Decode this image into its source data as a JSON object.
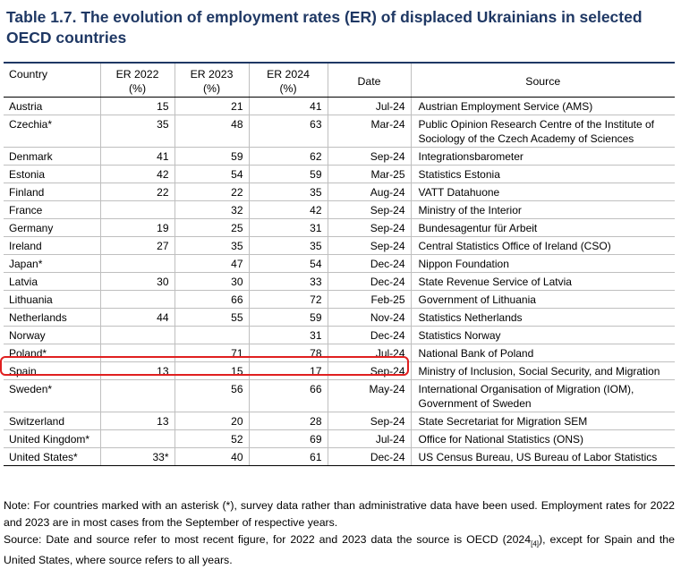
{
  "title": "Table 1.7. The evolution of employment rates (ER) of displaced Ukrainians in selected OECD countries",
  "headers": {
    "country": "Country",
    "er2022": [
      "ER 2022",
      "(%)"
    ],
    "er2023": [
      "ER 2023",
      "(%)"
    ],
    "er2024": [
      "ER 2024",
      "(%)"
    ],
    "date": "Date",
    "source": "Source"
  },
  "rows": [
    {
      "country": "Austria",
      "er2022": "15",
      "er2023": "21",
      "er2024": "41",
      "date": "Jul-24",
      "source": "Austrian Employment Service (AMS)"
    },
    {
      "country": "Czechia*",
      "er2022": "35",
      "er2023": "48",
      "er2024": "63",
      "date": "Mar-24",
      "source": "Public Opinion Research Centre of the Institute of Sociology of the Czech Academy of Sciences"
    },
    {
      "country": "Denmark",
      "er2022": "41",
      "er2023": "59",
      "er2024": "62",
      "date": "Sep-24",
      "source": "Integrationsbarometer"
    },
    {
      "country": "Estonia",
      "er2022": "42",
      "er2023": "54",
      "er2024": "59",
      "date": "Mar-25",
      "source": "Statistics Estonia"
    },
    {
      "country": "Finland",
      "er2022": "22",
      "er2023": "22",
      "er2024": "35",
      "date": "Aug-24",
      "source": "VATT Datahuone"
    },
    {
      "country": "France",
      "er2022": "",
      "er2023": "32",
      "er2024": "42",
      "date": "Sep-24",
      "source": "Ministry of the Interior"
    },
    {
      "country": "Germany",
      "er2022": "19",
      "er2023": "25",
      "er2024": "31",
      "date": "Sep-24",
      "source": "Bundesagentur für Arbeit"
    },
    {
      "country": "Ireland",
      "er2022": "27",
      "er2023": "35",
      "er2024": "35",
      "date": "Sep-24",
      "source": "Central Statistics Office of Ireland (CSO)"
    },
    {
      "country": "Japan*",
      "er2022": "",
      "er2023": "47",
      "er2024": "54",
      "date": "Dec-24",
      "source": "Nippon Foundation"
    },
    {
      "country": "Latvia",
      "er2022": "30",
      "er2023": "30",
      "er2024": "33",
      "date": "Dec-24",
      "source": "State Revenue Service of Latvia"
    },
    {
      "country": "Lithuania",
      "er2022": "",
      "er2023": "66",
      "er2024": "72",
      "date": "Feb-25",
      "source": "Government of Lithuania"
    },
    {
      "country": "Netherlands",
      "er2022": "44",
      "er2023": "55",
      "er2024": "59",
      "date": "Nov-24",
      "source": "Statistics Netherlands"
    },
    {
      "country": "Norway",
      "er2022": "",
      "er2023": "",
      "er2024": "31",
      "date": "Dec-24",
      "source": "Statistics Norway"
    },
    {
      "country": "Poland*",
      "er2022": "",
      "er2023": "71",
      "er2024": "78",
      "date": "Jul-24",
      "source": "National Bank of Poland"
    },
    {
      "country": "Spain",
      "er2022": "13",
      "er2023": "15",
      "er2024": "17",
      "date": "Sep-24",
      "source": "Ministry of Inclusion, Social Security, and Migration"
    },
    {
      "country": "Sweden*",
      "er2022": "",
      "er2023": "56",
      "er2024": "66",
      "date": "May-24",
      "source": "International Organisation of Migration (IOM), Government of Sweden"
    },
    {
      "country": "Switzerland",
      "er2022": "13",
      "er2023": "20",
      "er2024": "28",
      "date": "Sep-24",
      "source": "State Secretariat for Migration SEM"
    },
    {
      "country": "United Kingdom*",
      "er2022": "",
      "er2023": "52",
      "er2024": "69",
      "date": "Jul-24",
      "source": "Office for National Statistics (ONS)"
    },
    {
      "country": "United States*",
      "er2022": "33*",
      "er2023": "40",
      "er2024": "61",
      "date": "Dec-24",
      "source": "US Census Bureau, US Bureau of Labor Statistics"
    }
  ],
  "note": "Note: For countries marked with an asterisk (*), survey data rather than administrative data have been used. Employment rates for 2022 and 2023 are in most cases from the September of respective years.",
  "source_note_pre": "Source: Date and source refer to most recent figure, for 2022 and 2023 data the source is OECD (2024",
  "source_note_ref": "[4]",
  "source_note_post": "), except for Spain and the United States, where source refers to all years.",
  "colors": {
    "title": "#1f3864",
    "highlight": "#e02020"
  }
}
